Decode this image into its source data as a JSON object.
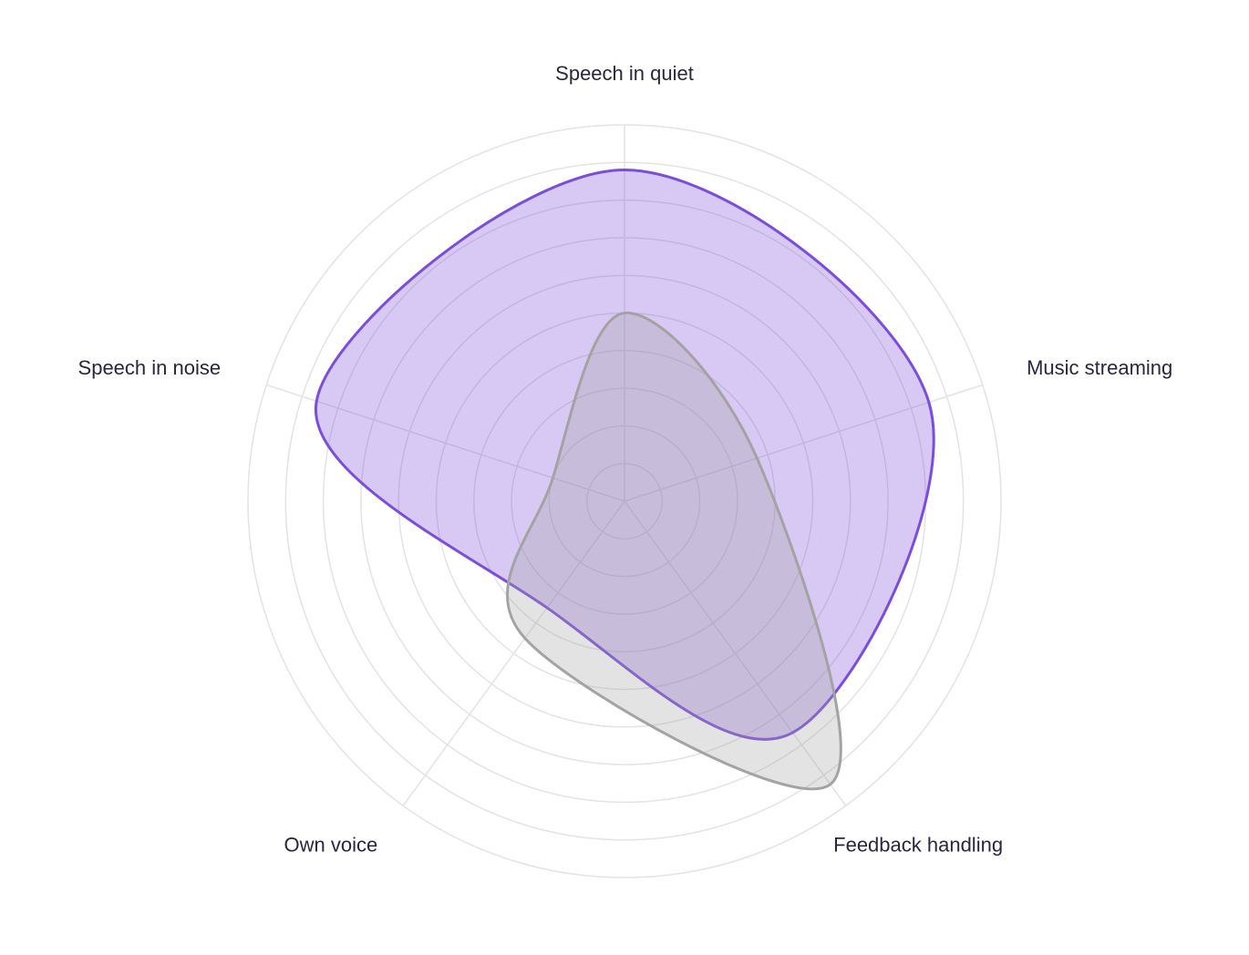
{
  "chart_data": {
    "type": "radar",
    "categories": [
      "Speech in quiet",
      "Music streaming",
      "Feedback handling",
      "Own voice",
      "Speech in noise"
    ],
    "series": [
      {
        "color": "#7b4ddb",
        "values": [
          8.8,
          8.5,
          7.6,
          3.5,
          8.6
        ]
      },
      {
        "color": "#a3a3a3",
        "values": [
          5.0,
          3.7,
          9.3,
          4.5,
          2.0
        ]
      }
    ],
    "rlim": [
      0,
      10
    ],
    "rticks": [
      1,
      2,
      3,
      4,
      5,
      6,
      7,
      8,
      9,
      10
    ],
    "grid": true
  }
}
